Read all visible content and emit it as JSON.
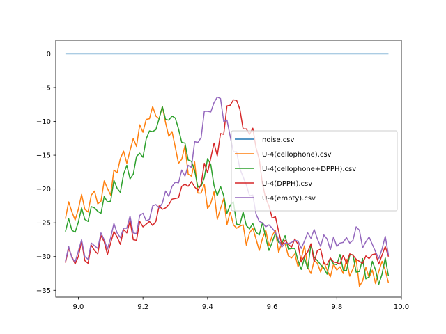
{
  "chart_data": {
    "type": "line",
    "title": "",
    "xlabel": "",
    "ylabel": "",
    "xlim": [
      8.93,
      10.0
    ],
    "ylim": [
      -36,
      2
    ],
    "xticks": [
      9.0,
      9.2,
      9.4,
      9.6,
      9.8,
      10.0
    ],
    "xtick_labels": [
      "9.0",
      "9.2",
      "9.4",
      "9.6",
      "9.8",
      "10.0"
    ],
    "yticks": [
      0,
      -5,
      -10,
      -15,
      -20,
      -25,
      -30,
      -35
    ],
    "ytick_labels": [
      "0",
      "−5",
      "−10",
      "−15",
      "−20",
      "−25",
      "−30",
      "−35"
    ],
    "grid": false,
    "legend_position": "center-right",
    "series": [
      {
        "name": "noise.csv",
        "color": "#1f77b4",
        "x": [
          8.96,
          9.96
        ],
        "y": [
          0,
          0
        ]
      },
      {
        "name": "U-4(cellophone).csv",
        "color": "#ff7f0e",
        "x": [
          8.96,
          8.97,
          8.98,
          8.99,
          9.0,
          9.01,
          9.02,
          9.03,
          9.04,
          9.05,
          9.06,
          9.07,
          9.08,
          9.09,
          9.1,
          9.11,
          9.12,
          9.13,
          9.14,
          9.15,
          9.16,
          9.17,
          9.18,
          9.19,
          9.2,
          9.21,
          9.22,
          9.23,
          9.24,
          9.25,
          9.26,
          9.27,
          9.28,
          9.29,
          9.3,
          9.31,
          9.32,
          9.33,
          9.34,
          9.35,
          9.36,
          9.37,
          9.38,
          9.39,
          9.4,
          9.41,
          9.42,
          9.43,
          9.44,
          9.45,
          9.46,
          9.47,
          9.48,
          9.49,
          9.5,
          9.51,
          9.52,
          9.53,
          9.54,
          9.55,
          9.56,
          9.57,
          9.58,
          9.59,
          9.6,
          9.61,
          9.62,
          9.63,
          9.64,
          9.65,
          9.66,
          9.67,
          9.68,
          9.69,
          9.7,
          9.71,
          9.72,
          9.73,
          9.74,
          9.75,
          9.76,
          9.77,
          9.78,
          9.79,
          9.8,
          9.81,
          9.82,
          9.83,
          9.84,
          9.85,
          9.86,
          9.87,
          9.88,
          9.89,
          9.9,
          9.91,
          9.92,
          9.93,
          9.94,
          9.95,
          9.96
        ],
        "y": [
          -24.4,
          -21.9,
          -23.4,
          -24.6,
          -23.0,
          -20.8,
          -23.0,
          -23.4,
          -20.9,
          -20.3,
          -22.2,
          -21.8,
          -18.8,
          -19.9,
          -20.9,
          -17.2,
          -17.6,
          -15.5,
          -14.4,
          -16.2,
          -14.3,
          -12.5,
          -13.7,
          -10.5,
          -11.6,
          -9.7,
          -9.6,
          -7.8,
          -9.2,
          -9.6,
          -7.8,
          -10.2,
          -12.2,
          -11.5,
          -13.8,
          -16.2,
          -15.6,
          -13.6,
          -17.8,
          -18.1,
          -16.0,
          -20.6,
          -20.6,
          -19.3,
          -22.9,
          -22.1,
          -20.4,
          -24.5,
          -22.9,
          -21.4,
          -25.3,
          -23.4,
          -25.3,
          -25.8,
          -25.5,
          -25.3,
          -28.3,
          -26.5,
          -25.8,
          -27.4,
          -29.1,
          -27.3,
          -26.1,
          -28.4,
          -26.9,
          -26.1,
          -29.4,
          -27.9,
          -28.1,
          -29.9,
          -30.2,
          -29.6,
          -31.5,
          -30.3,
          -28.4,
          -31.6,
          -32.5,
          -30.6,
          -31.0,
          -32.3,
          -30.8,
          -32.0,
          -33.0,
          -31.1,
          -32.0,
          -31.5,
          -32.5,
          -30.4,
          -32.9,
          -31.8,
          -30.4,
          -34.4,
          -33.6,
          -31.6,
          -33.1,
          -32.0,
          -34.0,
          -32.2,
          -30.7,
          -32.0,
          -33.9
        ]
      },
      {
        "name": "U-4(cellophone+DPPH).csv",
        "color": "#2ca02c",
        "x": [
          8.96,
          8.97,
          8.98,
          8.99,
          9.0,
          9.01,
          9.02,
          9.03,
          9.04,
          9.05,
          9.06,
          9.07,
          9.08,
          9.09,
          9.1,
          9.11,
          9.12,
          9.13,
          9.14,
          9.15,
          9.16,
          9.17,
          9.18,
          9.19,
          9.2,
          9.21,
          9.22,
          9.23,
          9.24,
          9.25,
          9.26,
          9.27,
          9.28,
          9.29,
          9.3,
          9.31,
          9.32,
          9.33,
          9.34,
          9.35,
          9.36,
          9.37,
          9.38,
          9.39,
          9.4,
          9.41,
          9.42,
          9.43,
          9.44,
          9.45,
          9.46,
          9.47,
          9.48,
          9.49,
          9.5,
          9.51,
          9.52,
          9.53,
          9.54,
          9.55,
          9.56,
          9.57,
          9.58,
          9.59,
          9.6,
          9.61,
          9.62,
          9.63,
          9.64,
          9.65,
          9.66,
          9.67,
          9.68,
          9.69,
          9.7,
          9.71,
          9.72,
          9.73,
          9.74,
          9.75,
          9.76,
          9.77,
          9.78,
          9.79,
          9.8,
          9.81,
          9.82,
          9.83,
          9.84,
          9.85,
          9.86,
          9.87,
          9.88,
          9.89,
          9.9,
          9.91,
          9.92,
          9.93,
          9.94,
          9.95,
          9.96
        ],
        "y": [
          -26.3,
          -24.4,
          -26.1,
          -26.4,
          -24.9,
          -22.8,
          -24.5,
          -24.8,
          -22.6,
          -22.8,
          -23.3,
          -23.6,
          -21.1,
          -21.9,
          -21.8,
          -18.7,
          -19.9,
          -20.5,
          -17.8,
          -16.5,
          -18.5,
          -17.8,
          -15.2,
          -14.7,
          -15.3,
          -12.6,
          -11.4,
          -11.5,
          -11.2,
          -9.6,
          -7.8,
          -9.7,
          -9.8,
          -9.2,
          -9.5,
          -11.1,
          -13.1,
          -13.2,
          -15.7,
          -15.9,
          -17.3,
          -19.7,
          -19.6,
          -18.3,
          -15.5,
          -16.4,
          -19.5,
          -21.0,
          -19.6,
          -21.0,
          -23.6,
          -22.4,
          -21.9,
          -25.2,
          -25.3,
          -23.4,
          -25.4,
          -25.9,
          -25.1,
          -26.4,
          -26.8,
          -25.0,
          -27.2,
          -29.1,
          -27.9,
          -26.5,
          -27.9,
          -28.0,
          -26.9,
          -28.9,
          -28.8,
          -28.8,
          -30.6,
          -31.9,
          -30.2,
          -31.8,
          -28.2,
          -30.1,
          -30.6,
          -31.2,
          -31.7,
          -32.6,
          -30.3,
          -31.1,
          -31.2,
          -29.7,
          -32.0,
          -32.1,
          -29.8,
          -29.7,
          -32.3,
          -32.2,
          -30.3,
          -33.3,
          -33.0,
          -30.7,
          -32.0,
          -34.1,
          -32.6,
          -30.2,
          -32.9
        ]
      },
      {
        "name": "U-4(DPPH).csv",
        "color": "#d62728",
        "x": [
          8.96,
          8.97,
          8.98,
          8.99,
          9.0,
          9.01,
          9.02,
          9.03,
          9.04,
          9.05,
          9.06,
          9.07,
          9.08,
          9.09,
          9.1,
          9.11,
          9.12,
          9.13,
          9.14,
          9.15,
          9.16,
          9.17,
          9.18,
          9.19,
          9.2,
          9.21,
          9.22,
          9.23,
          9.24,
          9.25,
          9.26,
          9.27,
          9.28,
          9.29,
          9.3,
          9.31,
          9.32,
          9.33,
          9.34,
          9.35,
          9.36,
          9.37,
          9.38,
          9.39,
          9.4,
          9.41,
          9.42,
          9.43,
          9.44,
          9.45,
          9.46,
          9.47,
          9.48,
          9.49,
          9.5,
          9.51,
          9.52,
          9.53,
          9.54,
          9.55,
          9.56,
          9.57,
          9.58,
          9.59,
          9.6,
          9.61,
          9.62,
          9.63,
          9.64,
          9.65,
          9.66,
          9.67,
          9.68,
          9.69,
          9.7,
          9.71,
          9.72,
          9.73,
          9.74,
          9.75,
          9.76,
          9.77,
          9.78,
          9.79,
          9.8,
          9.81,
          9.82,
          9.83,
          9.84,
          9.85,
          9.86,
          9.87,
          9.88,
          9.89,
          9.9,
          9.91,
          9.92,
          9.93,
          9.94,
          9.95,
          9.96
        ],
        "y": [
          -30.9,
          -28.8,
          -30.0,
          -31.1,
          -30.0,
          -27.7,
          -30.6,
          -31.0,
          -28.3,
          -29.1,
          -29.6,
          -26.9,
          -27.8,
          -29.7,
          -28.0,
          -26.3,
          -27.1,
          -28.2,
          -26.0,
          -26.5,
          -24.7,
          -27.5,
          -27.6,
          -24.8,
          -25.6,
          -25.2,
          -24.8,
          -25.4,
          -24.8,
          -22.5,
          -23.0,
          -22.8,
          -22.3,
          -21.5,
          -21.4,
          -21.3,
          -19.6,
          -19.3,
          -19.6,
          -18.9,
          -19.7,
          -20.2,
          -19.3,
          -16.2,
          -17.6,
          -15.4,
          -13.2,
          -15.1,
          -11.8,
          -11.9,
          -7.7,
          -7.6,
          -6.8,
          -6.9,
          -8.2,
          -11.1,
          -11.1,
          -11.9,
          -11.0,
          -13.9,
          -15.6,
          -19.3,
          -21.4,
          -22.5,
          -24.3,
          -24.1,
          -26.3,
          -28.3,
          -27.6,
          -28.2,
          -28.6,
          -27.4,
          -28.2,
          -30.8,
          -29.9,
          -29.3,
          -28.1,
          -30.8,
          -29.1,
          -28.9,
          -31.0,
          -31.2,
          -30.2,
          -30.8,
          -30.9,
          -31.1,
          -29.8,
          -31.0,
          -29.6,
          -29.8,
          -30.4,
          -30.7,
          -31.0,
          -29.9,
          -30.3,
          -29.7,
          -29.6,
          -31.1,
          -29.8,
          -28.5,
          -30.0
        ]
      },
      {
        "name": "U-4(empty).csv",
        "color": "#9467bd",
        "x": [
          8.96,
          8.97,
          8.98,
          8.99,
          9.0,
          9.01,
          9.02,
          9.03,
          9.04,
          9.05,
          9.06,
          9.07,
          9.08,
          9.09,
          9.1,
          9.11,
          9.12,
          9.13,
          9.14,
          9.15,
          9.16,
          9.17,
          9.18,
          9.19,
          9.2,
          9.21,
          9.22,
          9.23,
          9.24,
          9.25,
          9.26,
          9.27,
          9.28,
          9.29,
          9.3,
          9.31,
          9.32,
          9.33,
          9.34,
          9.35,
          9.36,
          9.37,
          9.38,
          9.39,
          9.4,
          9.41,
          9.42,
          9.43,
          9.44,
          9.45,
          9.46,
          9.47,
          9.48,
          9.49,
          9.5,
          9.51,
          9.52,
          9.53,
          9.54,
          9.55,
          9.56,
          9.57,
          9.58,
          9.59,
          9.6,
          9.61,
          9.62,
          9.63,
          9.64,
          9.65,
          9.66,
          9.67,
          9.68,
          9.69,
          9.7,
          9.71,
          9.72,
          9.73,
          9.74,
          9.75,
          9.76,
          9.77,
          9.78,
          9.79,
          9.8,
          9.81,
          9.82,
          9.83,
          9.84,
          9.85,
          9.86,
          9.87,
          9.88,
          9.89,
          9.9,
          9.91,
          9.92,
          9.93,
          9.94,
          9.95,
          9.96
        ],
        "y": [
          -30.7,
          -28.5,
          -30.2,
          -30.8,
          -29.2,
          -27.5,
          -30.0,
          -30.4,
          -28.0,
          -28.4,
          -28.8,
          -26.5,
          -27.5,
          -28.9,
          -27.2,
          -25.1,
          -26.5,
          -27.2,
          -25.8,
          -25.8,
          -24.0,
          -26.5,
          -26.6,
          -23.9,
          -23.6,
          -24.7,
          -24.5,
          -22.5,
          -22.3,
          -22.8,
          -22.1,
          -20.3,
          -21.1,
          -19.6,
          -19.0,
          -19.1,
          -17.2,
          -18.1,
          -16.5,
          -16.8,
          -13.0,
          -13.1,
          -12.4,
          -8.5,
          -8.5,
          -8.6,
          -7.2,
          -6.4,
          -6.6,
          -10.0,
          -9.8,
          -12.2,
          -14.5,
          -14.5,
          -17.0,
          -18.2,
          -19.4,
          -21.0,
          -20.9,
          -23.7,
          -24.8,
          -25.0,
          -25.6,
          -25.3,
          -25.8,
          -26.4,
          -27.5,
          -28.6,
          -28.0,
          -28.1,
          -27.9,
          -27.6,
          -27.7,
          -28.8,
          -27.7,
          -26.5,
          -27.3,
          -26.0,
          -27.4,
          -28.5,
          -26.8,
          -27.4,
          -29.0,
          -27.1,
          -28.5,
          -28.0,
          -27.9,
          -27.2,
          -28.0,
          -27.6,
          -25.6,
          -26.1,
          -28.7,
          -27.8,
          -27.1,
          -28.2,
          -29.3,
          -30.3,
          -28.9,
          -27.0,
          -29.8
        ]
      }
    ]
  }
}
